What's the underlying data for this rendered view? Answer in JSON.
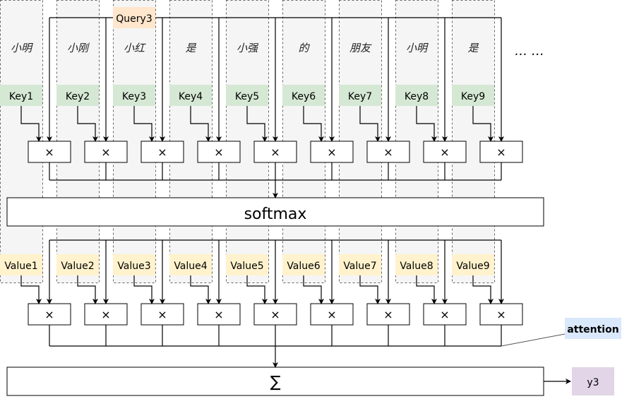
{
  "query": {
    "label": "Query3",
    "color": "#ffe6cc"
  },
  "tokens": [
    "小明",
    "小刚",
    "小红",
    "是",
    "小强",
    "的",
    "朋友",
    "小明",
    "是"
  ],
  "ellipsis": "… …",
  "keys": [
    "Key1",
    "Key2",
    "Key3",
    "Key4",
    "Key5",
    "Key6",
    "Key7",
    "Key8",
    "Key9"
  ],
  "values": [
    "Value1",
    "Value2",
    "Value3",
    "Value4",
    "Value5",
    "Value6",
    "Value7",
    "Value8",
    "Value9"
  ],
  "multiply_symbol": "×",
  "softmax": "softmax",
  "sum": "∑",
  "attention": "attention",
  "output": "y3",
  "colors": {
    "key": "#d5e8d4",
    "value": "#fff2cc",
    "attention": "#dae8fc",
    "output": "#e1d5e7",
    "column": "#f5f5f5"
  }
}
